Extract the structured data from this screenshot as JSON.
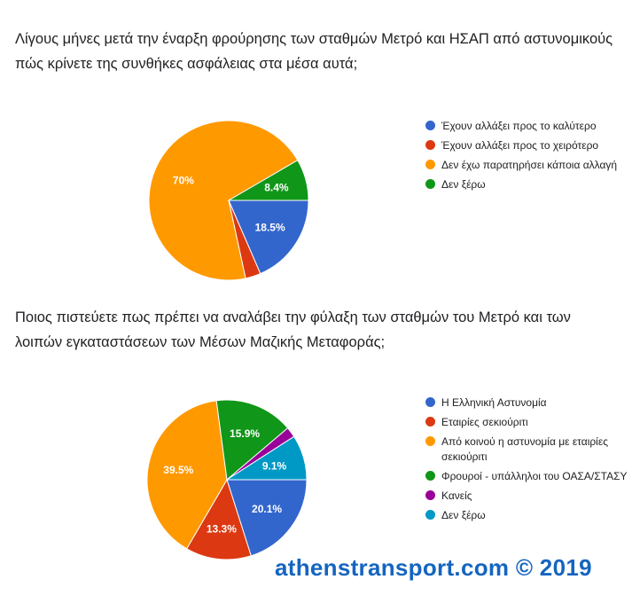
{
  "chart_data": [
    {
      "type": "pie",
      "title": "Λίγους μήνες μετά την έναρξη φρούρησης των σταθμών Μετρό και ΗΣΑΠ από αστυνομικούς πώς κρίνετε της συνθήκες ασφάλειας στα μέσα αυτά;",
      "categories": [
        "Έχουν αλλάξει προς το καλύτερο",
        "Έχουν αλλάξει προς το χειρότερο",
        "Δεν έχω παρατηρήσει κάποια αλλαγή",
        "Δεν ξέρω"
      ],
      "values": [
        18.5,
        3.1,
        70,
        8.4
      ],
      "labels": [
        "18.5%",
        "",
        "70%",
        "8.4%"
      ],
      "colors": [
        "#3366cc",
        "#dc3912",
        "#ff9900",
        "#109618"
      ],
      "legend": "right"
    },
    {
      "type": "pie",
      "title": "Ποιος πιστεύετε πως πρέπει να αναλάβει την φύλαξη των σταθμών του Μετρό και των λοιπών εγκαταστάσεων των Μέσων Μαζικής Μεταφοράς;",
      "categories": [
        "Η Ελληνική Αστυνομία",
        "Εταιρίες σεκιούριτι",
        "Από κοινού η αστυνομία με εταιρίες σεκιούριτι",
        "Φρουροί - υπάλληλοι του ΟΑΣΑ/ΣΤΑΣΥ",
        "Κανείς",
        "Δεν ξέρω"
      ],
      "values": [
        20.1,
        13.3,
        39.5,
        15.9,
        2.1,
        9.1
      ],
      "labels": [
        "20.1%",
        "13.3%",
        "39.5%",
        "15.9%",
        "",
        "9.1%"
      ],
      "colors": [
        "#3366cc",
        "#dc3912",
        "#ff9900",
        "#109618",
        "#990099",
        "#0099c6"
      ],
      "legend": "right"
    }
  ],
  "footer": "athenstransport.com © 2019"
}
